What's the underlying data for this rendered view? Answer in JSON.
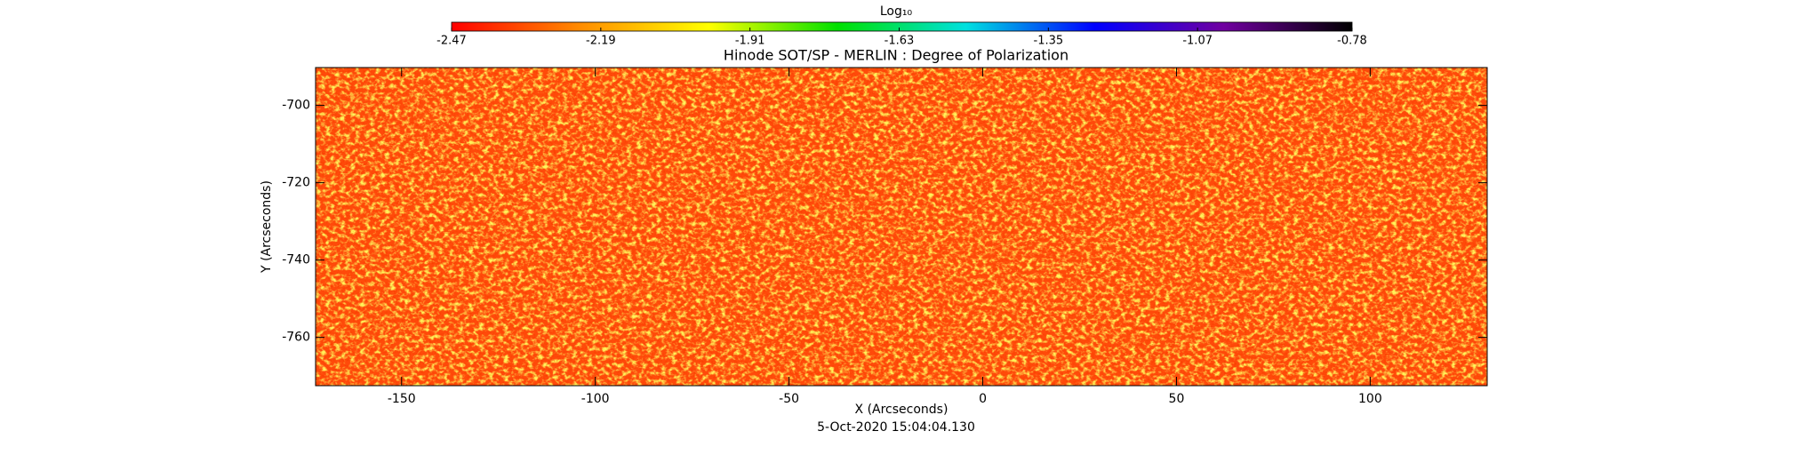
{
  "chart_data": {
    "type": "image",
    "title": "Hinode SOT/SP - MERLIN : Degree of Polarization",
    "xlabel": "X (Arcseconds)",
    "ylabel": "Y (Arcseconds)",
    "footer": "5-Oct-2020 15:04:04.130",
    "xlim": [
      -172.2,
      130.2
    ],
    "xticks": [
      -150,
      -100,
      -50,
      0,
      50,
      100
    ],
    "ylim": [
      -772.5,
      -690.2
    ],
    "yticks": [
      -700,
      -720,
      -740,
      -760
    ],
    "colorbar": {
      "label": "Log₁₀",
      "clim": [
        -2.47,
        -0.78
      ],
      "ticks": [
        -2.47,
        -2.19,
        -1.91,
        -1.63,
        -1.35,
        -1.07,
        -0.78
      ],
      "colors": [
        "#ff0000",
        "#ff8c00",
        "#ffff00",
        "#00e000",
        "#00e0e0",
        "#0000ff",
        "#7000a0",
        "#000000"
      ]
    }
  }
}
